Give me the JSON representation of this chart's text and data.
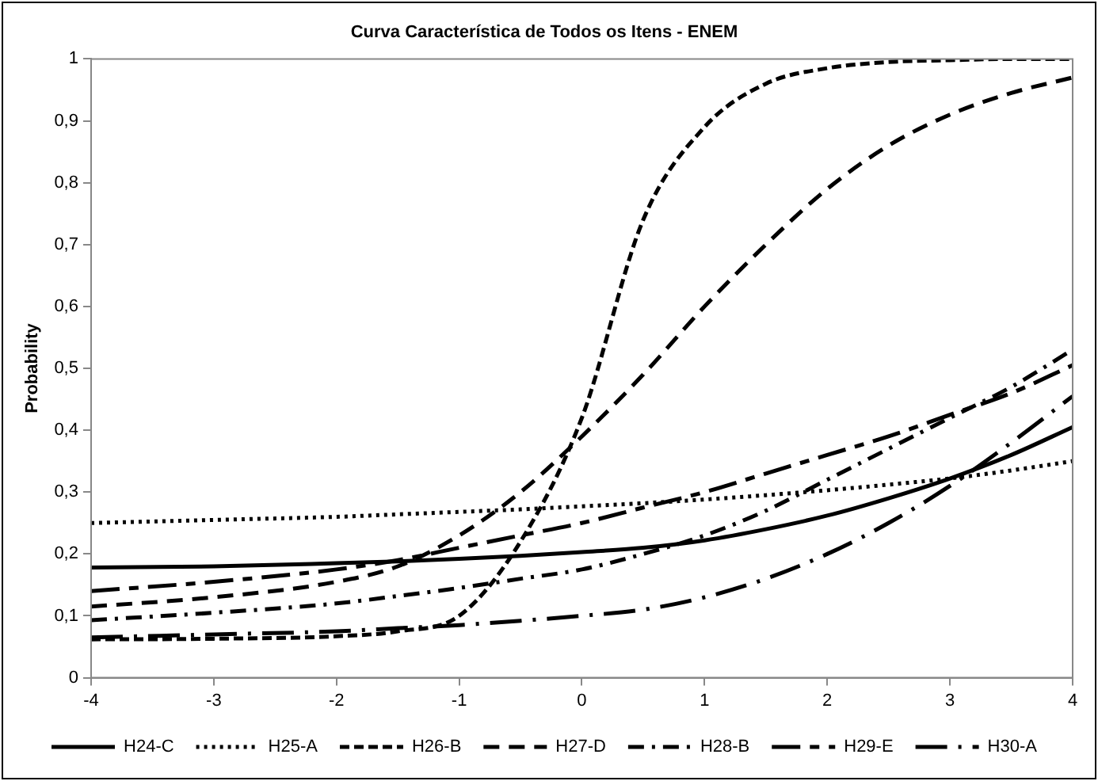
{
  "chart_data": {
    "type": "line",
    "title": "Curva Característica de Todos os Itens - ENEM",
    "ylabel": "Probability",
    "xlim": [
      -4,
      4
    ],
    "xticks": [
      -4,
      -3,
      -2,
      -1,
      0,
      1,
      2,
      3,
      4
    ],
    "ylim": [
      0,
      1
    ],
    "yticks": [
      0,
      {
        "value": 0.1,
        "label": "0,1"
      },
      {
        "value": 0.2,
        "label": "0,2"
      },
      {
        "value": 0.3,
        "label": "0,3"
      },
      {
        "value": 0.4,
        "label": "0,4"
      },
      {
        "value": 0.5,
        "label": "0,5"
      },
      {
        "value": 0.6,
        "label": "0,6"
      },
      {
        "value": 0.7,
        "label": "0,7"
      },
      {
        "value": 0.8,
        "label": "0,8"
      },
      {
        "value": 0.9,
        "label": "0,9"
      },
      1
    ],
    "grid": false,
    "legend": "bottom",
    "marker": "none",
    "x": [
      -4,
      -3,
      -2,
      -1.5,
      -1,
      -0.5,
      0,
      0.5,
      1,
      1.5,
      2,
      2.5,
      3,
      3.5,
      4
    ],
    "series": [
      {
        "name": "H24-C",
        "color": "#000000",
        "line_style": "solid",
        "values": [
          0.178,
          0.18,
          0.185,
          0.188,
          0.192,
          0.197,
          0.203,
          0.21,
          0.222,
          0.24,
          0.262,
          0.29,
          0.322,
          0.36,
          0.405
        ]
      },
      {
        "name": "H25-A",
        "color": "#000000",
        "line_style": "dotted",
        "values": [
          0.25,
          0.255,
          0.26,
          0.264,
          0.268,
          0.272,
          0.277,
          0.282,
          0.288,
          0.295,
          0.303,
          0.312,
          0.322,
          0.335,
          0.35
        ]
      },
      {
        "name": "H26-B",
        "color": "#000000",
        "line_style": "dashed",
        "values": [
          0.062,
          0.063,
          0.067,
          0.075,
          0.1,
          0.22,
          0.42,
          0.74,
          0.89,
          0.96,
          0.985,
          0.995,
          0.998,
          1,
          1
        ]
      },
      {
        "name": "H27-D",
        "color": "#000000",
        "line_style": "medium_dash",
        "values": [
          0.115,
          0.13,
          0.155,
          0.18,
          0.23,
          0.3,
          0.39,
          0.49,
          0.6,
          0.7,
          0.79,
          0.86,
          0.91,
          0.945,
          0.97
        ]
      },
      {
        "name": "H28-B",
        "color": "#000000",
        "line_style": "dash_dot",
        "values": [
          0.093,
          0.105,
          0.12,
          0.132,
          0.145,
          0.16,
          0.175,
          0.2,
          0.23,
          0.27,
          0.32,
          0.37,
          0.42,
          0.47,
          0.53
        ]
      },
      {
        "name": "H29-E",
        "color": "#000000",
        "line_style": "long_dash_dash",
        "values": [
          0.14,
          0.155,
          0.175,
          0.19,
          0.21,
          0.23,
          0.25,
          0.275,
          0.3,
          0.33,
          0.36,
          0.39,
          0.425,
          0.46,
          0.505
        ]
      },
      {
        "name": "H30-A",
        "color": "#000000",
        "line_style": "long_dash_dot",
        "values": [
          0.065,
          0.07,
          0.075,
          0.08,
          0.085,
          0.092,
          0.1,
          0.11,
          0.13,
          0.16,
          0.2,
          0.25,
          0.31,
          0.38,
          0.455
        ]
      }
    ]
  }
}
